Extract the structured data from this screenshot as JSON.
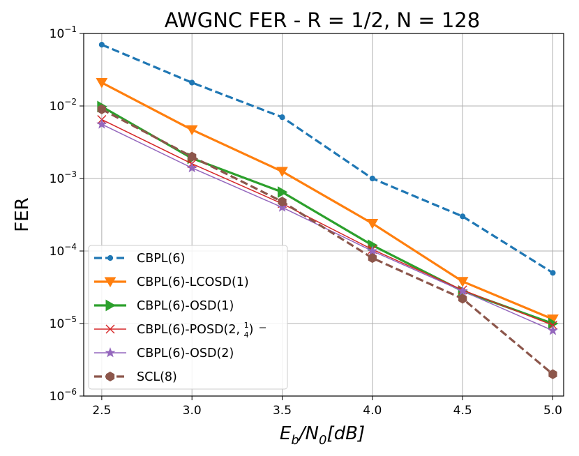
{
  "chart_data": {
    "type": "line",
    "title": "AWGNC FER - R = 1/2, N = 128",
    "xlabel": "E_b/N_0[dB]",
    "ylabel": "FER",
    "yscale": "log",
    "xlim": [
      2.4,
      5.06
    ],
    "ylim": [
      1e-06,
      0.1
    ],
    "grid": true,
    "legend_position": "lower-left",
    "x": [
      2.5,
      3.0,
      3.5,
      4.0,
      4.5,
      5.0
    ],
    "x_tick_labels": [
      "2.5",
      "3.0",
      "3.5",
      "4.0",
      "4.5",
      "5.0"
    ],
    "y_ticks": [
      {
        "value": 0.1,
        "base": "10",
        "exp": "−1"
      },
      {
        "value": 0.01,
        "base": "10",
        "exp": "−2"
      },
      {
        "value": 0.001,
        "base": "10",
        "exp": "−3"
      },
      {
        "value": 0.0001,
        "base": "10",
        "exp": "−4"
      },
      {
        "value": 1e-05,
        "base": "10",
        "exp": "−5"
      },
      {
        "value": 1e-06,
        "base": "10",
        "exp": "−6"
      }
    ],
    "series": [
      {
        "name": "CBPL(6)",
        "legend_text": "CBPL(6)",
        "color": "#1f77b4",
        "dash": "dashed",
        "marker": "dot",
        "width": "thick",
        "values": [
          0.07,
          0.021,
          0.007,
          0.001,
          0.0003,
          5e-05
        ]
      },
      {
        "name": "CBPL(6)-LCOSD(1)",
        "legend_text": "CBPL(6)-LCOSD(1)",
        "color": "#ff7f0e",
        "dash": "solid",
        "marker": "triangle-down",
        "width": "thick",
        "values": [
          0.021,
          0.0047,
          0.00125,
          0.00024,
          3.8e-05,
          1.15e-05
        ]
      },
      {
        "name": "CBPL(6)-OSD(1)",
        "legend_text": "CBPL(6)-OSD(1)",
        "color": "#2ca02c",
        "dash": "solid",
        "marker": "triangle-right",
        "width": "thick",
        "values": [
          0.0098,
          0.0019,
          0.00065,
          0.00012,
          2.8e-05,
          1e-05
        ]
      },
      {
        "name": "CBPL(6)-POSD(2, 1/4)",
        "legend_text": "CBPL(6)-POSD(2, ",
        "legend_frac_num": "1",
        "legend_frac_den": "4",
        "legend_suffix": ")",
        "color": "#d62728",
        "dash": "solid",
        "marker": "x",
        "width": "thin",
        "values": [
          0.0065,
          0.0016,
          0.00045,
          0.000105,
          2.9e-05,
          9.5e-06
        ]
      },
      {
        "name": "CBPL(6)-OSD(2)",
        "legend_text": "CBPL(6)-OSD(2)",
        "color": "#9467bd",
        "dash": "solid",
        "marker": "star",
        "width": "thin",
        "values": [
          0.0056,
          0.0014,
          0.0004,
          0.0001,
          2.8e-05,
          8e-06
        ]
      },
      {
        "name": "SCL(8)",
        "legend_text": "SCL(8)",
        "color": "#8c564b",
        "dash": "dashed",
        "marker": "hexagon",
        "width": "thick",
        "values": [
          0.009,
          0.002,
          0.00048,
          8e-05,
          2.2e-05,
          2e-06
        ]
      }
    ]
  }
}
